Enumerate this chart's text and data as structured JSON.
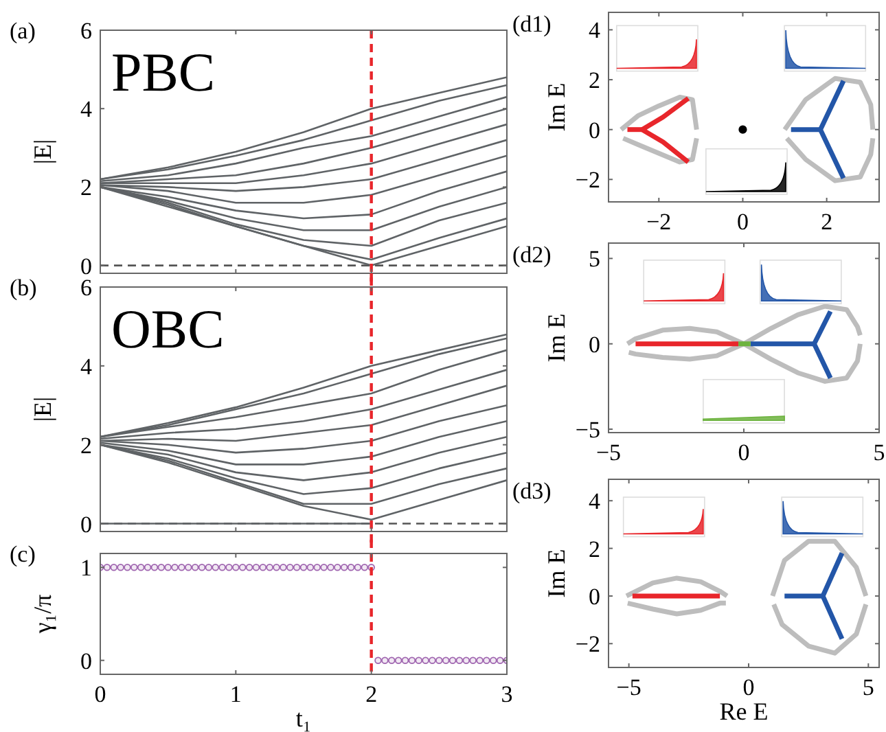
{
  "chart_data": [
    {
      "type": "line",
      "title": "(a)",
      "ylabel": "|E|",
      "annotations": [
        "PBC"
      ],
      "x": [
        0,
        0.5,
        1,
        1.5,
        2,
        2.5,
        3
      ],
      "xlim": [
        0,
        3
      ],
      "ylim": [
        -0.2,
        6
      ],
      "xticks": [
        0,
        1,
        2,
        3
      ],
      "yticks": [
        0,
        2,
        4,
        6
      ],
      "tick_labels": "y",
      "grid": false,
      "ref_lines": [
        {
          "axis": "y",
          "value": 0,
          "color": "#555555",
          "line_style": "dashed"
        },
        {
          "axis": "x",
          "value": 2,
          "color": "#e8262b",
          "line_style": "dashed"
        }
      ],
      "series": [
        {
          "color": "#5f6366",
          "values": [
            2.2,
            2.5,
            2.9,
            3.4,
            4.0,
            4.4,
            4.8
          ]
        },
        {
          "color": "#5f6366",
          "values": [
            2.2,
            2.45,
            2.8,
            3.2,
            3.7,
            4.2,
            4.6
          ]
        },
        {
          "color": "#5f6366",
          "values": [
            2.15,
            2.3,
            2.6,
            3.0,
            3.3,
            3.8,
            4.3
          ]
        },
        {
          "color": "#5f6366",
          "values": [
            2.1,
            2.2,
            2.3,
            2.6,
            3.0,
            3.5,
            4.0
          ]
        },
        {
          "color": "#5f6366",
          "values": [
            2.1,
            2.1,
            2.1,
            2.3,
            2.6,
            3.1,
            3.6
          ]
        },
        {
          "color": "#5f6366",
          "values": [
            2.05,
            2.0,
            1.9,
            2.0,
            2.2,
            2.7,
            3.2
          ]
        },
        {
          "color": "#5f6366",
          "values": [
            2.05,
            1.9,
            1.6,
            1.6,
            1.8,
            2.3,
            2.8
          ]
        },
        {
          "color": "#5f6366",
          "values": [
            2.0,
            1.75,
            1.4,
            1.2,
            1.3,
            1.9,
            2.4
          ]
        },
        {
          "color": "#5f6366",
          "values": [
            2.0,
            1.65,
            1.2,
            0.9,
            0.9,
            1.5,
            2.0
          ]
        },
        {
          "color": "#5f6366",
          "values": [
            2.0,
            1.6,
            1.05,
            0.65,
            0.5,
            1.15,
            1.6
          ]
        },
        {
          "color": "#5f6366",
          "values": [
            2.0,
            1.55,
            1.0,
            0.5,
            0.15,
            0.7,
            1.2
          ]
        },
        {
          "color": "#5f6366",
          "values": [
            2.0,
            1.5,
            1.0,
            0.5,
            0.0,
            0.5,
            1.0
          ]
        }
      ]
    },
    {
      "type": "line",
      "title": "(b)",
      "ylabel": "|E|",
      "annotations": [
        "OBC"
      ],
      "x": [
        0,
        0.5,
        1,
        1.5,
        2,
        2.5,
        3
      ],
      "xlim": [
        0,
        3
      ],
      "ylim": [
        -0.2,
        6
      ],
      "xticks": [
        0,
        1,
        2,
        3
      ],
      "yticks": [
        0,
        2,
        4,
        6
      ],
      "tick_labels": "y",
      "grid": false,
      "ref_lines": [
        {
          "axis": "y",
          "value": 0,
          "color": "#555555",
          "line_style": "dashed"
        },
        {
          "axis": "x",
          "value": 2,
          "color": "#e8262b",
          "line_style": "dashed"
        }
      ],
      "series": [
        {
          "color": "#5f6366",
          "values": [
            2.2,
            2.55,
            2.95,
            3.45,
            4.0,
            4.4,
            4.8
          ]
        },
        {
          "color": "#5f6366",
          "values": [
            2.2,
            2.5,
            2.9,
            3.3,
            3.8,
            4.3,
            4.7
          ]
        },
        {
          "color": "#5f6366",
          "values": [
            2.2,
            2.45,
            2.7,
            3.0,
            3.3,
            3.9,
            4.4
          ]
        },
        {
          "color": "#5f6366",
          "values": [
            2.15,
            2.3,
            2.4,
            2.6,
            2.9,
            3.4,
            3.9
          ]
        },
        {
          "color": "#5f6366",
          "values": [
            2.1,
            2.15,
            2.1,
            2.3,
            2.5,
            3.0,
            3.5
          ]
        },
        {
          "color": "#5f6366",
          "values": [
            2.1,
            2.0,
            1.8,
            1.9,
            2.1,
            2.6,
            3.0
          ]
        },
        {
          "color": "#5f6366",
          "values": [
            2.05,
            1.85,
            1.5,
            1.5,
            1.7,
            2.2,
            2.6
          ]
        },
        {
          "color": "#5f6366",
          "values": [
            2.0,
            1.75,
            1.3,
            1.1,
            1.3,
            1.8,
            2.2
          ]
        },
        {
          "color": "#5f6366",
          "values": [
            2.0,
            1.65,
            1.15,
            0.75,
            0.9,
            1.4,
            1.8
          ]
        },
        {
          "color": "#5f6366",
          "values": [
            2.0,
            1.6,
            1.05,
            0.5,
            0.5,
            1.0,
            1.4
          ]
        },
        {
          "color": "#5f6366",
          "values": [
            2.0,
            1.55,
            1.0,
            0.45,
            0.1,
            0.6,
            1.1
          ]
        },
        {
          "color": "#5f6366",
          "x": [
            0,
            0.5,
            1,
            1.5,
            2
          ],
          "values": [
            0,
            0,
            0,
            0,
            0
          ]
        }
      ]
    },
    {
      "type": "scatter",
      "title": "(c)",
      "ylabel": "γ₁/π",
      "xlabel": "t₁",
      "xlim": [
        0,
        3
      ],
      "ylim": [
        -0.15,
        1.15
      ],
      "xticks": [
        0,
        1,
        2,
        3
      ],
      "yticks": [
        0,
        1
      ],
      "marker": "circle",
      "grid": false,
      "ref_lines": [
        {
          "axis": "x",
          "value": 2,
          "color": "#e8262b",
          "line_style": "dashed"
        }
      ],
      "series": [
        {
          "color": "#a066b0",
          "x": [
            0,
            0.05,
            0.1,
            0.15,
            0.2,
            0.25,
            0.3,
            0.35,
            0.4,
            0.45,
            0.5,
            0.55,
            0.6,
            0.65,
            0.7,
            0.75,
            0.8,
            0.85,
            0.9,
            0.95,
            1,
            1.05,
            1.1,
            1.15,
            1.2,
            1.25,
            1.3,
            1.35,
            1.4,
            1.45,
            1.5,
            1.55,
            1.6,
            1.65,
            1.7,
            1.75,
            1.8,
            1.85,
            1.9,
            1.95,
            2
          ],
          "values": [
            1,
            1,
            1,
            1,
            1,
            1,
            1,
            1,
            1,
            1,
            1,
            1,
            1,
            1,
            1,
            1,
            1,
            1,
            1,
            1,
            1,
            1,
            1,
            1,
            1,
            1,
            1,
            1,
            1,
            1,
            1,
            1,
            1,
            1,
            1,
            1,
            1,
            1,
            1,
            1,
            1
          ]
        },
        {
          "color": "#a066b0",
          "x": [
            2.05,
            2.1,
            2.15,
            2.2,
            2.25,
            2.3,
            2.35,
            2.4,
            2.45,
            2.5,
            2.55,
            2.6,
            2.65,
            2.7,
            2.75,
            2.8,
            2.85,
            2.9,
            2.95,
            3
          ],
          "values": [
            0,
            0,
            0,
            0,
            0,
            0,
            0,
            0,
            0,
            0,
            0,
            0,
            0,
            0,
            0,
            0,
            0,
            0,
            0,
            0
          ]
        }
      ]
    },
    {
      "type": "line",
      "title": "(d1)",
      "ylabel": "Im E",
      "xlim": [
        -3.2,
        3.25
      ],
      "ylim": [
        -2.9,
        4.7
      ],
      "xticks": [
        -2,
        0,
        2
      ],
      "yticks": [
        -2,
        0,
        2,
        4
      ],
      "grid": false,
      "series": [
        {
          "color": "#bdbdbd",
          "x": [
            -2.9,
            -2.5,
            -2.0,
            -1.5,
            -1.2,
            -1.1
          ],
          "values": [
            0,
            0.55,
            0.95,
            1.3,
            1.2,
            0
          ]
        },
        {
          "color": "#bdbdbd",
          "x": [
            -2.85,
            -2.5,
            -2.0,
            -1.5,
            -1.2,
            -1.1
          ],
          "values": [
            -0.35,
            -0.6,
            -0.95,
            -1.3,
            -1.2,
            -0.35
          ]
        },
        {
          "color": "#bdbdbd",
          "x": [
            1.0,
            1.5,
            2.2,
            2.8,
            3.05,
            3.1
          ],
          "values": [
            0,
            1.2,
            2.05,
            1.9,
            1.0,
            0
          ]
        },
        {
          "color": "#bdbdbd",
          "x": [
            1.05,
            1.5,
            2.2,
            2.8,
            3.05,
            3.1
          ],
          "values": [
            -0.35,
            -1.2,
            -2.05,
            -1.9,
            -1.0,
            -0.35
          ]
        },
        {
          "color": "#e8262b",
          "x": [
            -1.3,
            -1.9,
            -2.4,
            -1.9,
            -1.3
          ],
          "values": [
            1.25,
            0.5,
            0,
            -0.5,
            -1.3
          ]
        },
        {
          "color": "#e8262b",
          "x": [
            -2.75,
            -2.4
          ],
          "values": [
            0,
            0
          ]
        },
        {
          "color": "#2356a8",
          "x": [
            2.4,
            1.85,
            2.4
          ],
          "values": [
            1.95,
            0,
            -1.95
          ]
        },
        {
          "color": "#2356a8",
          "x": [
            1.15,
            1.85
          ],
          "values": [
            0,
            0
          ]
        },
        {
          "type": "scatter",
          "color": "#000000",
          "x": [
            0
          ],
          "values": [
            0
          ]
        }
      ]
    },
    {
      "type": "line",
      "title": "(d2)",
      "ylabel": "Im E",
      "xlim": [
        -5,
        5
      ],
      "ylim": [
        -5.2,
        5.9
      ],
      "xticks": [
        -5,
        0,
        5
      ],
      "yticks": [
        -5,
        0,
        5
      ],
      "grid": false,
      "series": [
        {
          "color": "#bdbdbd",
          "x": [
            -4.3,
            -4,
            -3,
            -2,
            -1,
            0,
            1,
            2,
            3,
            3.8,
            4.2,
            4.3
          ],
          "values": [
            0,
            0.3,
            0.8,
            0.9,
            0.7,
            0,
            -0.9,
            -1.7,
            -2.2,
            -2,
            -1,
            0
          ]
        },
        {
          "color": "#bdbdbd",
          "x": [
            -4.25,
            -4,
            -3,
            -2,
            -1,
            0,
            1,
            2,
            3,
            3.8,
            4.2,
            4.3
          ],
          "values": [
            -0.5,
            -0.6,
            -0.8,
            -0.9,
            -0.7,
            0,
            0.9,
            1.7,
            2.2,
            2,
            1,
            0.5
          ]
        },
        {
          "color": "#e8262b",
          "x": [
            -4.0,
            -0.2
          ],
          "values": [
            0,
            0
          ]
        },
        {
          "color": "#2356a8",
          "x": [
            0.25,
            2.6
          ],
          "values": [
            0,
            0
          ]
        },
        {
          "color": "#2356a8",
          "x": [
            3.2,
            2.6,
            3.2
          ],
          "values": [
            1.9,
            0,
            -2.0
          ]
        },
        {
          "color": "#6db33f",
          "x": [
            -0.2,
            0.25
          ],
          "values": [
            0,
            0
          ]
        }
      ]
    },
    {
      "type": "line",
      "title": "(d3)",
      "ylabel": "Im E",
      "xlabel": "Re E",
      "xlim": [
        -5.85,
        5.45
      ],
      "ylim": [
        -3,
        4.9
      ],
      "xticks": [
        -5,
        0,
        5
      ],
      "yticks": [
        -2,
        0,
        2,
        4
      ],
      "grid": false,
      "series": [
        {
          "color": "#bdbdbd",
          "x": [
            -5.1,
            -4,
            -3,
            -2,
            -1.2,
            -0.9
          ],
          "values": [
            0,
            0.55,
            0.75,
            0.6,
            0.2,
            0
          ]
        },
        {
          "color": "#bdbdbd",
          "x": [
            -5.05,
            -4,
            -3,
            -2,
            -1.2,
            -0.95
          ],
          "values": [
            -0.3,
            -0.55,
            -0.75,
            -0.6,
            -0.3,
            -0.3
          ]
        },
        {
          "color": "#bdbdbd",
          "x": [
            1.0,
            1.5,
            2.5,
            3.6,
            4.5,
            4.9
          ],
          "values": [
            0,
            1.5,
            2.3,
            2.3,
            1.2,
            0
          ]
        },
        {
          "color": "#bdbdbd",
          "x": [
            1.05,
            1.4,
            2.5,
            3.6,
            4.5,
            4.9
          ],
          "values": [
            -0.35,
            -1.2,
            -2.1,
            -2.4,
            -1.6,
            -0.35
          ]
        },
        {
          "color": "#e8262b",
          "x": [
            -4.85,
            -1.2
          ],
          "values": [
            0,
            0
          ]
        },
        {
          "color": "#2356a8",
          "x": [
            1.5,
            3.1
          ],
          "values": [
            0,
            0
          ]
        },
        {
          "color": "#2356a8",
          "x": [
            3.9,
            3.1,
            3.9
          ],
          "values": [
            1.8,
            0,
            -1.8
          ]
        }
      ]
    }
  ]
}
